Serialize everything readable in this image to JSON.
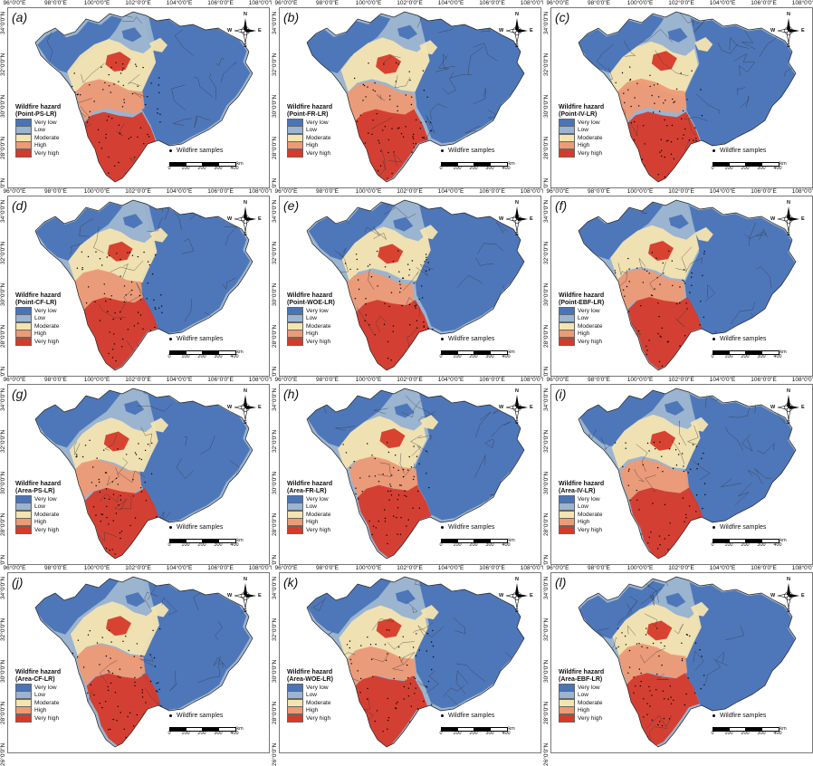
{
  "lon_ticks": [
    "96°0'0\"E",
    "98°0'0\"E",
    "100°0'0\"E",
    "102°0'0\"E",
    "104°0'0\"E",
    "106°0'0\"E",
    "108°0'0\"E"
  ],
  "lat_ticks": [
    "34°0'0\"N",
    "32°0'0\"N",
    "30°0'0\"N",
    "28°0'0\"N",
    "26°0'0\"N"
  ],
  "legend": {
    "title": "Wildfire hazard",
    "classes": [
      {
        "label": "Very low",
        "color": "#4a74b8"
      },
      {
        "label": "Low",
        "color": "#9bb4cf"
      },
      {
        "label": "Moderate",
        "color": "#f3e4b0"
      },
      {
        "label": "High",
        "color": "#ee9a74"
      },
      {
        "label": "Very high",
        "color": "#d63a2a"
      }
    ]
  },
  "samples_label": "Wildfire samples",
  "scale": {
    "ticks": [
      "0",
      "100",
      "200",
      "300",
      "400"
    ],
    "unit": "km"
  },
  "compass": {
    "n": "N",
    "s": "S",
    "e": "E",
    "w": "W"
  },
  "panels": [
    {
      "label": "(a)",
      "model": "(Point-PS-LR)"
    },
    {
      "label": "(b)",
      "model": "(Point-FR-LR)"
    },
    {
      "label": "(c)",
      "model": "(Point-IV-LR)"
    },
    {
      "label": "(d)",
      "model": "(Point-CF-LR)"
    },
    {
      "label": "(e)",
      "model": "(Point-WOE-LR)"
    },
    {
      "label": "(f)",
      "model": "(Point-EBF-LR)"
    },
    {
      "label": "(g)",
      "model": "(Area-PS-LR)"
    },
    {
      "label": "(h)",
      "model": "(Area-FR-LR)"
    },
    {
      "label": "(i)",
      "model": "(Area-IV-LR)"
    },
    {
      "label": "(j)",
      "model": "(Area-CF-LR)"
    },
    {
      "label": "(k)",
      "model": "(Area-WOE-LR)"
    },
    {
      "label": "(l)",
      "model": "(Area-EBF-LR)"
    }
  ]
}
